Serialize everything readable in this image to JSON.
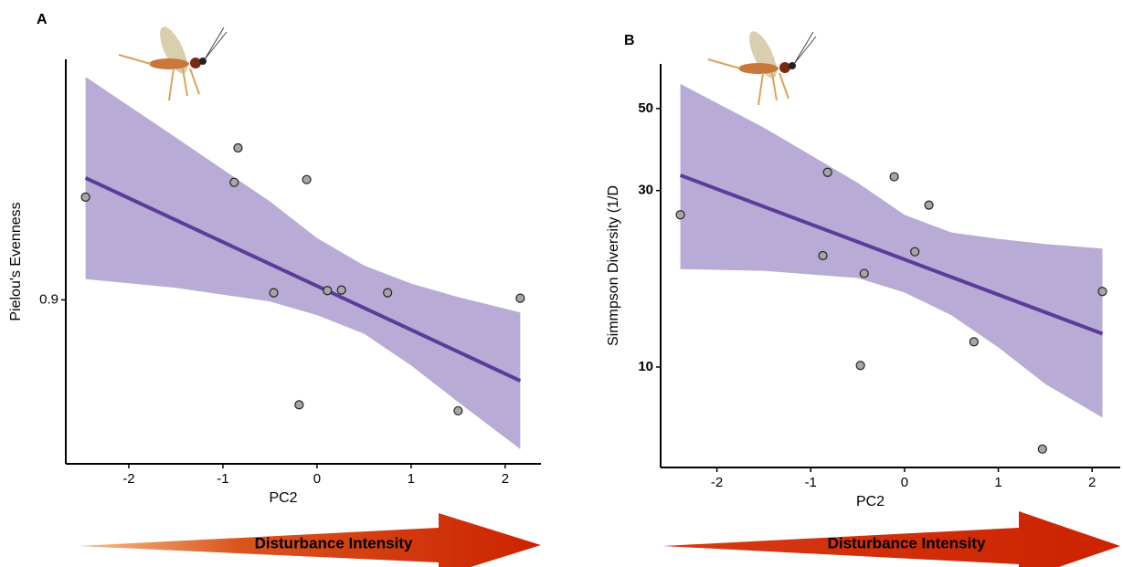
{
  "chart_data": [
    {
      "type": "scatter",
      "panel_label": "A",
      "x_label": "PC2",
      "y_label": "Pielou's Evenness",
      "x": [
        -2.46,
        -0.84,
        -0.88,
        -0.11,
        -0.46,
        0.11,
        0.26,
        0.75,
        2.16,
        -0.19,
        1.5
      ],
      "values": [
        0.9188,
        0.9278,
        0.9215,
        0.922,
        0.9013,
        0.9017,
        0.9018,
        0.9013,
        0.9003,
        0.8808,
        0.8797
      ],
      "color": "#a6a6a6",
      "fit": {
        "x": [
          -2.46,
          2.16
        ],
        "values": [
          0.9223,
          0.8852
        ],
        "color": "#5b3c99"
      },
      "band": {
        "x": [
          -2.46,
          -1.5,
          -0.5,
          0,
          0.5,
          1,
          1.5,
          2.16
        ],
        "lower": [
          0.9038,
          0.9022,
          0.8997,
          0.8972,
          0.8938,
          0.888,
          0.8813,
          0.8727
        ],
        "upper": [
          0.9408,
          0.9297,
          0.918,
          0.9113,
          0.9063,
          0.903,
          0.9005,
          0.8977
        ],
        "color": "#b8acd6"
      },
      "xlim": [
        -2.67,
        2.38
      ],
      "xticks": [
        -2,
        -1,
        0,
        1,
        2
      ],
      "ylim": [
        0.87,
        0.944
      ],
      "yticks": [
        0.9
      ],
      "log_y": false,
      "annotation": "Disturbance Intensity"
    },
    {
      "type": "scatter",
      "panel_label": "B",
      "x_label": "PC2",
      "y_label": "Simmpson Diversity (1/D",
      "x": [
        -2.39,
        -0.82,
        -0.87,
        -0.11,
        -0.43,
        0.11,
        0.26,
        0.74,
        2.11,
        -0.47,
        1.47
      ],
      "values": [
        25.8,
        33.6,
        20.0,
        32.7,
        17.9,
        20.5,
        27.4,
        11.7,
        16.0,
        10.1,
        6.0
      ],
      "color": "#a6a6a6",
      "fit": {
        "x": [
          -2.39,
          2.11
        ],
        "values": [
          33.0,
          12.3
        ],
        "color": "#5b3c99"
      },
      "band": {
        "x": [
          -2.39,
          -1.5,
          -0.5,
          0,
          0.5,
          1,
          1.5,
          2.11
        ],
        "lower": [
          18.4,
          18.2,
          17.4,
          15.9,
          13.8,
          11.3,
          9.0,
          7.3
        ],
        "upper": [
          58.3,
          44.4,
          31.5,
          25.8,
          23.1,
          22.2,
          21.5,
          20.9
        ],
        "color": "#b8acd6"
      },
      "xlim": [
        -2.6,
        2.3
      ],
      "xticks": [
        -2,
        -1,
        0,
        1,
        2
      ],
      "ylim": [
        5.35,
        66
      ],
      "yticks": [
        10,
        30,
        50
      ],
      "log_y": true,
      "annotation": "Disturbance Intensity"
    }
  ]
}
